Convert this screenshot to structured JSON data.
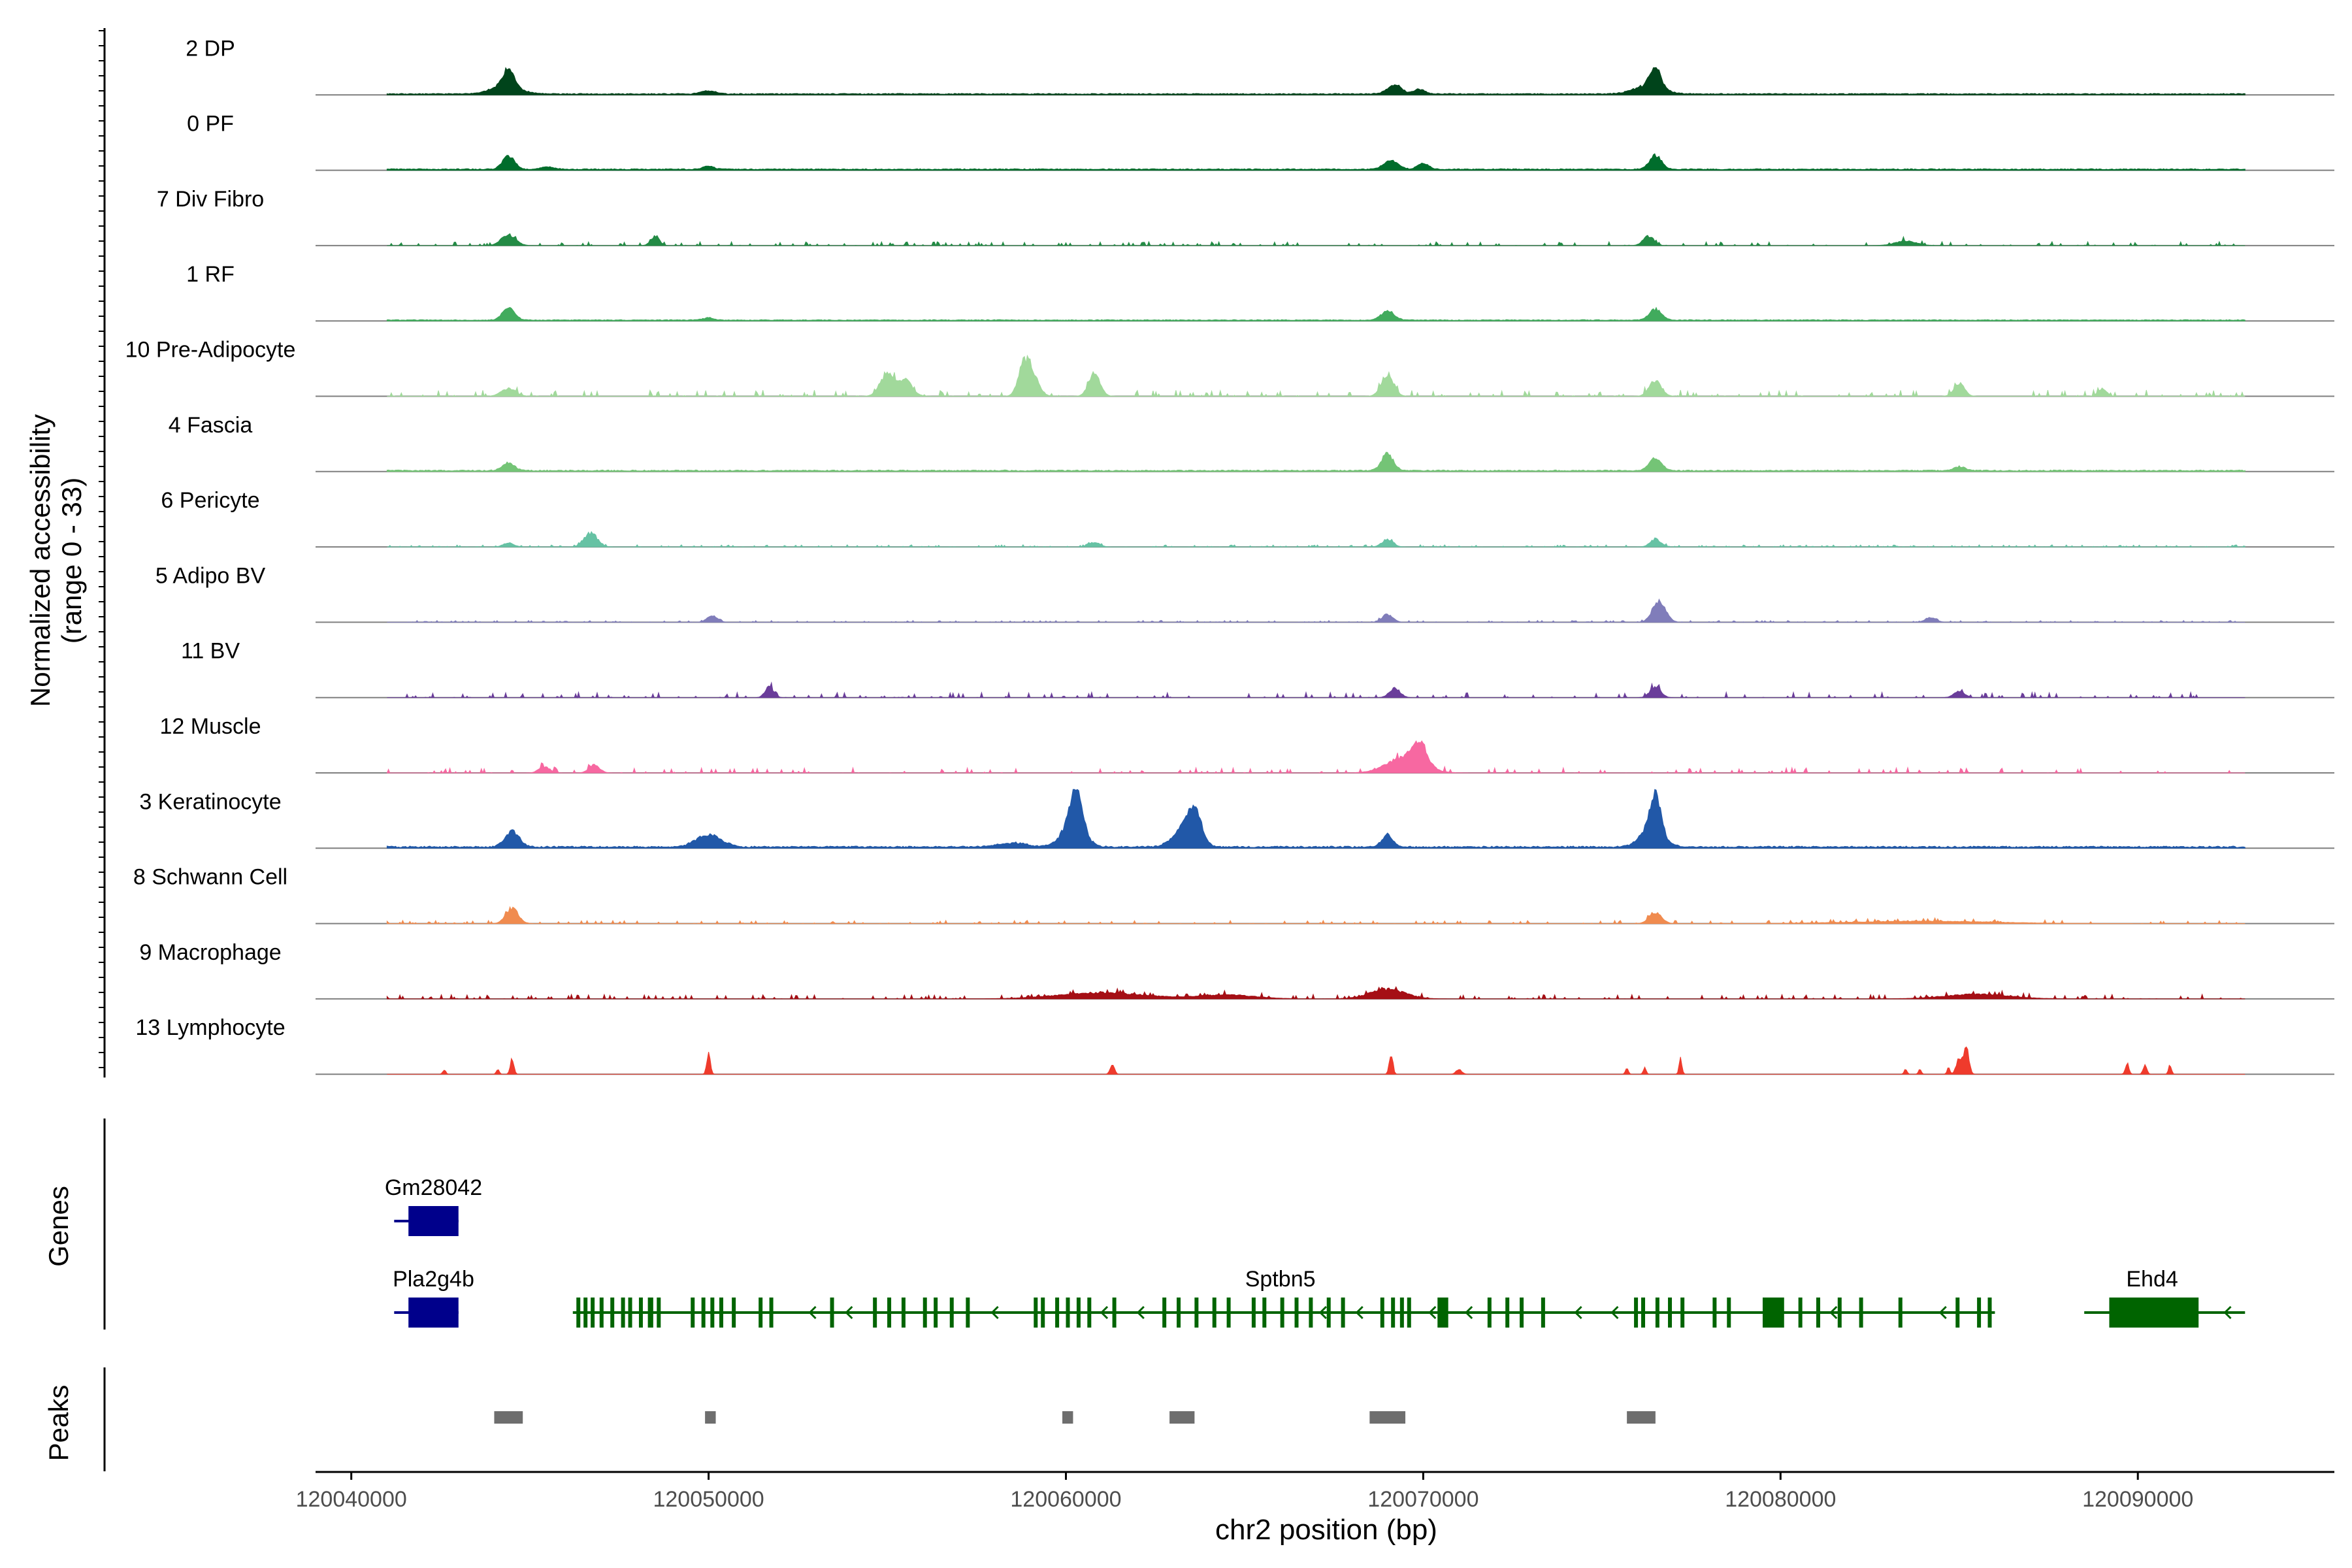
{
  "chart_data": {
    "type": "area",
    "title": "",
    "region": {
      "chrom": "chr2",
      "start": 120039000,
      "end": 120095500
    },
    "xlabel": "chr2 position (bp)",
    "xticks": [
      {
        "value": 120040000,
        "label": "120040000"
      },
      {
        "value": 120050000,
        "label": "120050000"
      },
      {
        "value": 120060000,
        "label": "120060000"
      },
      {
        "value": 120070000,
        "label": "120070000"
      },
      {
        "value": 120080000,
        "label": "120080000"
      },
      {
        "value": 120090000,
        "label": "120090000"
      }
    ],
    "ylabel_line1": "Normalized accessibility",
    "ylabel_line2": "(range 0 - 33)",
    "ylim": [
      0,
      33
    ],
    "genes_label": "Genes",
    "peaks_label": "Peaks",
    "tracks": [
      {
        "name": "2 DP",
        "color": "#00441b",
        "base": 0.35,
        "noise": 0.5,
        "density": 1.0,
        "peaks": [
          [
            120044400,
            11,
            160
          ],
          [
            120044300,
            5,
            400
          ],
          [
            120069200,
            6,
            200
          ],
          [
            120069900,
            3,
            150
          ],
          [
            120076500,
            12,
            160
          ],
          [
            120076300,
            5,
            400
          ],
          [
            120050000,
            2,
            200
          ]
        ]
      },
      {
        "name": "0 PF",
        "color": "#006d2c",
        "base": 0.35,
        "noise": 0.5,
        "density": 1.0,
        "peaks": [
          [
            120044400,
            9,
            160
          ],
          [
            120069100,
            6,
            200
          ],
          [
            120070000,
            4,
            150
          ],
          [
            120076500,
            9,
            170
          ],
          [
            120050000,
            2,
            150
          ],
          [
            120045500,
            1.5,
            200
          ]
        ]
      },
      {
        "name": "7 Div Fibro",
        "color": "#238b45",
        "base": 0.0,
        "noise": 2.2,
        "density": 0.45,
        "peaks": [
          [
            120044400,
            7,
            200
          ],
          [
            120048500,
            6,
            120
          ],
          [
            120076300,
            6,
            150
          ],
          [
            120083500,
            3,
            300
          ]
        ]
      },
      {
        "name": "1 RF",
        "color": "#41ab5d",
        "base": 0.3,
        "noise": 0.4,
        "density": 1.0,
        "peaks": [
          [
            120044400,
            8,
            170
          ],
          [
            120069000,
            6,
            180
          ],
          [
            120076500,
            7,
            170
          ],
          [
            120050000,
            1.5,
            150
          ]
        ]
      },
      {
        "name": "10 Pre-Adipocyte",
        "color": "#a1d99b",
        "base": 0.0,
        "noise": 3.5,
        "density": 0.5,
        "peaks": [
          [
            120055000,
            14,
            200
          ],
          [
            120055500,
            10,
            200
          ],
          [
            120059000,
            17,
            200
          ],
          [
            120058800,
            12,
            150
          ],
          [
            120060800,
            15,
            160
          ],
          [
            120069000,
            14,
            170
          ],
          [
            120076500,
            10,
            170
          ],
          [
            120085000,
            8,
            150
          ],
          [
            120089000,
            5,
            120
          ],
          [
            120044400,
            5,
            200
          ]
        ]
      },
      {
        "name": "4 Fascia",
        "color": "#74c476",
        "base": 0.3,
        "noise": 0.6,
        "density": 1.0,
        "peaks": [
          [
            120044400,
            5,
            170
          ],
          [
            120069000,
            11,
            160
          ],
          [
            120076500,
            8,
            170
          ],
          [
            120085000,
            2.5,
            150
          ]
        ]
      },
      {
        "name": "6 Pericyte",
        "color": "#66c2a4",
        "base": 0.2,
        "noise": 1.2,
        "density": 0.7,
        "peaks": [
          [
            120046700,
            9,
            180
          ],
          [
            120069000,
            5,
            150
          ],
          [
            120076500,
            5,
            150
          ],
          [
            120060800,
            3,
            150
          ],
          [
            120044400,
            2.5,
            150
          ]
        ]
      },
      {
        "name": "5 Adipo BV",
        "color": "#807dba",
        "base": 0.2,
        "noise": 1.0,
        "density": 0.75,
        "peaks": [
          [
            120076600,
            14,
            180
          ],
          [
            120050100,
            4,
            150
          ],
          [
            120069000,
            5,
            150
          ],
          [
            120084200,
            3,
            150
          ]
        ]
      },
      {
        "name": "11 BV",
        "color": "#6a3d9a",
        "base": 0.0,
        "noise": 3.0,
        "density": 0.4,
        "peaks": [
          [
            120051700,
            7,
            120
          ],
          [
            120069200,
            6,
            150
          ],
          [
            120076500,
            7,
            150
          ],
          [
            120085000,
            4,
            150
          ]
        ]
      },
      {
        "name": "12 Muscle",
        "color": "#f768a1",
        "base": 0.0,
        "noise": 3.0,
        "density": 0.4,
        "peaks": [
          [
            120069500,
            10,
            500
          ],
          [
            120069900,
            13,
            200
          ],
          [
            120046800,
            5,
            150
          ],
          [
            120045400,
            4,
            150
          ]
        ]
      },
      {
        "name": "3 Keratinocyte",
        "color": "#2158a8",
        "base": 0.4,
        "noise": 0.8,
        "density": 1.0,
        "peaks": [
          [
            120044500,
            10,
            200
          ],
          [
            120050000,
            8,
            350
          ],
          [
            120060300,
            24,
            150
          ],
          [
            120060200,
            16,
            300
          ],
          [
            120063600,
            18,
            200
          ],
          [
            120063300,
            12,
            300
          ],
          [
            120069000,
            8,
            150
          ],
          [
            120076500,
            23,
            150
          ],
          [
            120076400,
            12,
            300
          ],
          [
            120058500,
            2.5,
            400
          ]
        ]
      },
      {
        "name": "8 Schwann Cell",
        "color": "#f08b4f",
        "base": 0.0,
        "noise": 1.8,
        "density": 0.5,
        "peaks": [
          [
            120044500,
            10,
            170
          ],
          [
            120076500,
            7,
            170
          ],
          [
            120084000,
            1.5,
            2000
          ]
        ]
      },
      {
        "name": "9 Macrophage",
        "color": "#a50f15",
        "base": 0.0,
        "noise": 2.5,
        "density": 0.55,
        "peaks": [
          [
            120061000,
            4,
            1200
          ],
          [
            120069000,
            6,
            500
          ],
          [
            120085500,
            3,
            900
          ],
          [
            120064500,
            2.5,
            800
          ]
        ]
      },
      {
        "name": "13 Lymphocyte",
        "color": "#ef3b2c",
        "base": 0.0,
        "noise": 0.0,
        "density": 0.0,
        "peaks": [
          [
            120044500,
            10,
            50
          ],
          [
            120050000,
            13,
            50
          ],
          [
            120069100,
            13,
            50
          ],
          [
            120085200,
            18,
            70
          ],
          [
            120085000,
            10,
            80
          ],
          [
            120077200,
            10,
            40
          ],
          [
            120089700,
            7,
            50
          ],
          [
            120090200,
            6,
            50
          ],
          [
            120061300,
            6,
            60
          ],
          [
            120071000,
            3,
            80
          ],
          [
            120042600,
            3,
            40
          ],
          [
            120044100,
            3,
            40
          ],
          [
            120075700,
            4,
            40
          ],
          [
            120076200,
            4,
            40
          ],
          [
            120083500,
            3,
            40
          ],
          [
            120083900,
            3,
            40
          ],
          [
            120084700,
            4,
            40
          ],
          [
            120090900,
            6,
            40
          ]
        ]
      }
    ],
    "genes": [
      {
        "name": "Gm28042",
        "row": 0,
        "color": "#00008b",
        "strand": "+",
        "start": 120041200,
        "end": 120043000,
        "exons": [
          [
            120041600,
            120043000
          ]
        ],
        "label_x": 120042300
      },
      {
        "name": "Pla2g4b",
        "row": 1,
        "color": "#00008b",
        "strand": "+",
        "start": 120041200,
        "end": 120043000,
        "exons": [
          [
            120041600,
            120043000
          ]
        ],
        "label_x": 120042300
      },
      {
        "name": "Sptbn5",
        "row": 1,
        "color": "#006400",
        "strand": "-",
        "start": 120046200,
        "end": 120086000,
        "exons": [
          [
            120046300,
            120046400
          ],
          [
            120046500,
            120046600
          ],
          [
            120046700,
            120046800
          ],
          [
            120046950,
            120047050
          ],
          [
            120047250,
            120047350
          ],
          [
            120047550,
            120047650
          ],
          [
            120047750,
            120047850
          ],
          [
            120048050,
            120048150
          ],
          [
            120048300,
            120048450
          ],
          [
            120048550,
            120048650
          ],
          [
            120049500,
            120049600
          ],
          [
            120049800,
            120049900
          ],
          [
            120050050,
            120050150
          ],
          [
            120050300,
            120050400
          ],
          [
            120050650,
            120050750
          ],
          [
            120051400,
            120051500
          ],
          [
            120051700,
            120051800
          ],
          [
            120053400,
            120053500
          ],
          [
            120054600,
            120054700
          ],
          [
            120055000,
            120055100
          ],
          [
            120055400,
            120055500
          ],
          [
            120056000,
            120056100
          ],
          [
            120056300,
            120056400
          ],
          [
            120056750,
            120056850
          ],
          [
            120057200,
            120057300
          ],
          [
            120059100,
            120059200
          ],
          [
            120059300,
            120059400
          ],
          [
            120059700,
            120059800
          ],
          [
            120060000,
            120060100
          ],
          [
            120060300,
            120060400
          ],
          [
            120060600,
            120060700
          ],
          [
            120061300,
            120061400
          ],
          [
            120062700,
            120062800
          ],
          [
            120063100,
            120063200
          ],
          [
            120063600,
            120063700
          ],
          [
            120064100,
            120064200
          ],
          [
            120064500,
            120064600
          ],
          [
            120065200,
            120065300
          ],
          [
            120065500,
            120065600
          ],
          [
            120066000,
            120066100
          ],
          [
            120066400,
            120066500
          ],
          [
            120066800,
            120066900
          ],
          [
            120067300,
            120067400
          ],
          [
            120067700,
            120067800
          ],
          [
            120068800,
            120068900
          ],
          [
            120069100,
            120069200
          ],
          [
            120069350,
            120069450
          ],
          [
            120069550,
            120069650
          ],
          [
            120070400,
            120070700
          ],
          [
            120071800,
            120071900
          ],
          [
            120072300,
            120072400
          ],
          [
            120072700,
            120072800
          ],
          [
            120073300,
            120073400
          ],
          [
            120075900,
            120076000
          ],
          [
            120076100,
            120076200
          ],
          [
            120076500,
            120076600
          ],
          [
            120076850,
            120076950
          ],
          [
            120077200,
            120077300
          ],
          [
            120078100,
            120078200
          ],
          [
            120078500,
            120078600
          ],
          [
            120079500,
            120080100
          ],
          [
            120080500,
            120080600
          ],
          [
            120081000,
            120081100
          ],
          [
            120081600,
            120081700
          ],
          [
            120082200,
            120082300
          ],
          [
            120083300,
            120083400
          ],
          [
            120084900,
            120085000
          ],
          [
            120085500,
            120085600
          ],
          [
            120085800,
            120085900
          ]
        ],
        "label_x": 120066000
      },
      {
        "name": "Ehd4",
        "row": 1,
        "color": "#006400",
        "strand": "-",
        "start": 120088500,
        "end": 120093000,
        "exons": [
          [
            120089200,
            120091700
          ]
        ],
        "label_x": 120090400
      }
    ],
    "peaks": [
      {
        "start": 120044000,
        "end": 120044800
      },
      {
        "start": 120049900,
        "end": 120050200
      },
      {
        "start": 120059900,
        "end": 120060200
      },
      {
        "start": 120062900,
        "end": 120063600
      },
      {
        "start": 120068500,
        "end": 120069500
      },
      {
        "start": 120075700,
        "end": 120076500
      }
    ]
  }
}
